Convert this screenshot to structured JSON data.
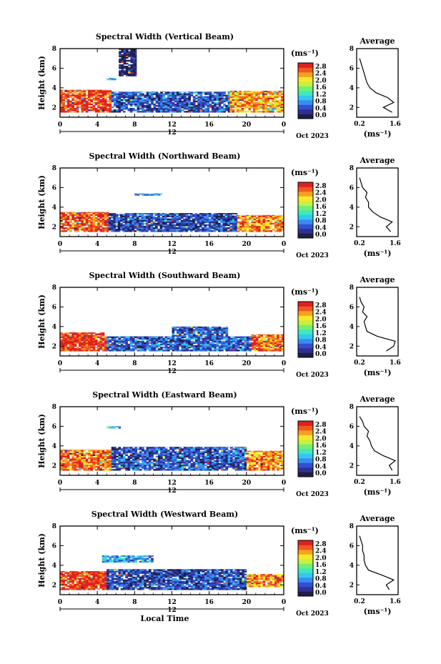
{
  "figure": {
    "xaxis_title": "Local Time",
    "date_label": "Oct 2023"
  },
  "colorbar": {
    "unit_label": "(ms⁻¹)",
    "ticks": [
      "2.8",
      "2.4",
      "2.0",
      "1.6",
      "1.2",
      "0.8",
      "0.4",
      "0.0"
    ],
    "range": [
      0,
      2.8
    ],
    "colors": [
      "#1e1e4a",
      "#303090",
      "#3050d0",
      "#3a8cf0",
      "#32c8f0",
      "#40e8c0",
      "#70f070",
      "#c8f040",
      "#f8e828",
      "#f8a020",
      "#f05a1e",
      "#e02020"
    ]
  },
  "chart_data": [
    {
      "type": "heatmap",
      "title": "Spectral Width (Vertical Beam)",
      "xlabel": "",
      "ylabel": "Height (km)",
      "xlim": [
        0,
        24
      ],
      "ylim": [
        1,
        8
      ],
      "xticks": [
        "0",
        "4",
        "8",
        "12",
        "16",
        "20",
        "0"
      ],
      "yticks": [
        "2",
        "4",
        "6",
        "8"
      ],
      "date_tick": "12",
      "zlabel": "(ms⁻¹)",
      "zlim": [
        0,
        2.8
      ],
      "regions": [
        {
          "t": [
            0.0,
            5.5
          ],
          "h": [
            1.5,
            3.8
          ],
          "value": 2.6
        },
        {
          "t": [
            5.5,
            18.2
          ],
          "h": [
            1.5,
            3.6
          ],
          "value": 0.55
        },
        {
          "t": [
            18.2,
            24.0
          ],
          "h": [
            1.5,
            3.7
          ],
          "value": 2.2
        },
        {
          "t": [
            6.3,
            8.2
          ],
          "h": [
            5.2,
            8.0
          ],
          "value": 0.2
        },
        {
          "t": [
            5.0,
            6.0
          ],
          "h": [
            4.8,
            5.0
          ],
          "value": 0.9
        }
      ],
      "average": {
        "title": "Average",
        "xlabel": "(ms⁻¹)",
        "xlim": [
          0.2,
          1.6
        ],
        "xticks": [
          "0.2",
          "1.6"
        ],
        "yticks": [
          "2",
          "4",
          "6",
          "8"
        ],
        "ylim": [
          1,
          8
        ],
        "height": [
          1.5,
          2.0,
          2.5,
          3.0,
          3.5,
          4.0,
          4.5,
          5.0,
          5.5,
          6.0,
          6.5,
          7.0
        ],
        "value": [
          1.4,
          1.1,
          1.45,
          1.25,
          0.85,
          0.65,
          0.55,
          0.5,
          0.45,
          0.4,
          0.35,
          0.3
        ]
      }
    },
    {
      "type": "heatmap",
      "title": "Spectral Width (Northward Beam)",
      "xlabel": "",
      "ylabel": "Height (km)",
      "xlim": [
        0,
        24
      ],
      "ylim": [
        1,
        8
      ],
      "xticks": [
        "0",
        "4",
        "8",
        "12",
        "16",
        "20",
        "0"
      ],
      "yticks": [
        "2",
        "4",
        "6",
        "8"
      ],
      "date_tick": "12",
      "zlabel": "(ms⁻¹)",
      "zlim": [
        0,
        2.8
      ],
      "regions": [
        {
          "t": [
            0.0,
            5.2
          ],
          "h": [
            1.5,
            3.5
          ],
          "value": 2.5
        },
        {
          "t": [
            5.2,
            19.0
          ],
          "h": [
            1.5,
            3.4
          ],
          "value": 0.5
        },
        {
          "t": [
            19.0,
            24.0
          ],
          "h": [
            1.5,
            3.2
          ],
          "value": 2.3
        },
        {
          "t": [
            8.0,
            11.0
          ],
          "h": [
            5.2,
            5.4
          ],
          "value": 0.9
        }
      ],
      "average": {
        "title": "Average",
        "xlabel": "(ms⁻¹)",
        "xlim": [
          0.2,
          1.6
        ],
        "xticks": [
          "0.2",
          "1.6"
        ],
        "yticks": [
          "2",
          "4",
          "6",
          "8"
        ],
        "ylim": [
          1,
          8
        ],
        "height": [
          1.5,
          2.0,
          2.5,
          3.0,
          3.5,
          4.0,
          4.5,
          5.0,
          5.5,
          6.0,
          6.5,
          7.0
        ],
        "value": [
          1.35,
          1.2,
          1.4,
          1.0,
          0.75,
          0.6,
          0.6,
          0.5,
          0.55,
          0.4,
          0.35,
          0.3
        ]
      }
    },
    {
      "type": "heatmap",
      "title": "Spectral Width (Southward Beam)",
      "xlabel": "",
      "ylabel": "Height (km)",
      "xlim": [
        0,
        24
      ],
      "ylim": [
        1,
        8
      ],
      "xticks": [
        "0",
        "4",
        "8",
        "12",
        "16",
        "20",
        "0"
      ],
      "yticks": [
        "2",
        "4",
        "6",
        "8"
      ],
      "date_tick": "12",
      "zlabel": "(ms⁻¹)",
      "zlim": [
        0,
        2.8
      ],
      "regions": [
        {
          "t": [
            0.0,
            5.0
          ],
          "h": [
            1.5,
            3.4
          ],
          "value": 2.6
        },
        {
          "t": [
            5.0,
            20.5
          ],
          "h": [
            1.5,
            3.0
          ],
          "value": 0.6
        },
        {
          "t": [
            20.5,
            24.0
          ],
          "h": [
            1.5,
            3.2
          ],
          "value": 2.4
        },
        {
          "t": [
            12.0,
            18.0
          ],
          "h": [
            3.0,
            4.0
          ],
          "value": 0.55
        }
      ],
      "average": {
        "title": "Average",
        "xlabel": "(ms⁻¹)",
        "xlim": [
          0.2,
          1.6
        ],
        "xticks": [
          "0.2",
          "1.6"
        ],
        "yticks": [
          "2",
          "4",
          "6",
          "8"
        ],
        "ylim": [
          1,
          8
        ],
        "height": [
          1.5,
          2.0,
          2.5,
          3.0,
          3.5,
          4.0,
          4.5,
          5.0,
          5.5,
          6.0,
          6.5,
          7.0
        ],
        "value": [
          1.2,
          1.45,
          1.5,
          0.9,
          0.55,
          0.5,
          0.45,
          0.55,
          0.4,
          0.45,
          0.35,
          0.3
        ]
      }
    },
    {
      "type": "heatmap",
      "title": "Spectral Width (Eastward Beam)",
      "xlabel": "",
      "ylabel": "Height (km)",
      "xlim": [
        0,
        24
      ],
      "ylim": [
        1,
        8
      ],
      "xticks": [
        "0",
        "4",
        "8",
        "12",
        "16",
        "20",
        "0"
      ],
      "yticks": [
        "2",
        "4",
        "6",
        "8"
      ],
      "date_tick": "12",
      "zlabel": "(ms⁻¹)",
      "zlim": [
        0,
        2.8
      ],
      "regions": [
        {
          "t": [
            0.0,
            5.5
          ],
          "h": [
            1.5,
            3.6
          ],
          "value": 2.4
        },
        {
          "t": [
            5.5,
            20.0
          ],
          "h": [
            1.5,
            3.9
          ],
          "value": 0.55
        },
        {
          "t": [
            20.0,
            24.0
          ],
          "h": [
            1.5,
            3.5
          ],
          "value": 2.3
        },
        {
          "t": [
            5.0,
            6.5
          ],
          "h": [
            5.8,
            6.0
          ],
          "value": 0.9
        }
      ],
      "average": {
        "title": "Average",
        "xlabel": "(ms⁻¹)",
        "xlim": [
          0.2,
          1.6
        ],
        "xticks": [
          "0.2",
          "1.6"
        ],
        "yticks": [
          "2",
          "4",
          "6",
          "8"
        ],
        "ylim": [
          1,
          8
        ],
        "height": [
          1.5,
          2.0,
          2.5,
          3.0,
          3.5,
          4.0,
          4.5,
          5.0,
          5.5,
          6.0,
          6.5,
          7.0
        ],
        "value": [
          1.4,
          1.3,
          1.5,
          1.1,
          0.8,
          0.7,
          0.65,
          0.55,
          0.6,
          0.45,
          0.4,
          0.3
        ]
      }
    },
    {
      "type": "heatmap",
      "title": "Spectral Width (Westward Beam)",
      "xlabel": "Local Time",
      "ylabel": "Height (km)",
      "xlim": [
        0,
        24
      ],
      "ylim": [
        1,
        8
      ],
      "xticks": [
        "0",
        "4",
        "8",
        "12",
        "16",
        "20",
        "0"
      ],
      "yticks": [
        "2",
        "4",
        "6",
        "8"
      ],
      "date_tick": "12",
      "zlabel": "(ms⁻¹)",
      "zlim": [
        0,
        2.8
      ],
      "regions": [
        {
          "t": [
            0.0,
            5.0
          ],
          "h": [
            1.5,
            3.4
          ],
          "value": 2.6
        },
        {
          "t": [
            5.0,
            20.0
          ],
          "h": [
            1.5,
            3.6
          ],
          "value": 0.5
        },
        {
          "t": [
            20.0,
            24.0
          ],
          "h": [
            1.8,
            3.1
          ],
          "value": 2.3
        },
        {
          "t": [
            4.5,
            10.0
          ],
          "h": [
            4.3,
            5.0
          ],
          "value": 0.9
        }
      ],
      "average": {
        "title": "Average",
        "xlabel": "(ms⁻¹)",
        "xlim": [
          0.2,
          1.6
        ],
        "xticks": [
          "0.2",
          "1.6"
        ],
        "yticks": [
          "2",
          "4",
          "6",
          "8"
        ],
        "ylim": [
          1,
          8
        ],
        "height": [
          1.5,
          2.0,
          2.5,
          3.0,
          3.5,
          4.0,
          4.5,
          5.0,
          5.5,
          6.0,
          6.5,
          7.0
        ],
        "value": [
          1.3,
          1.2,
          1.45,
          1.05,
          0.6,
          0.5,
          0.45,
          0.45,
          0.4,
          0.4,
          0.35,
          0.3
        ]
      }
    }
  ]
}
